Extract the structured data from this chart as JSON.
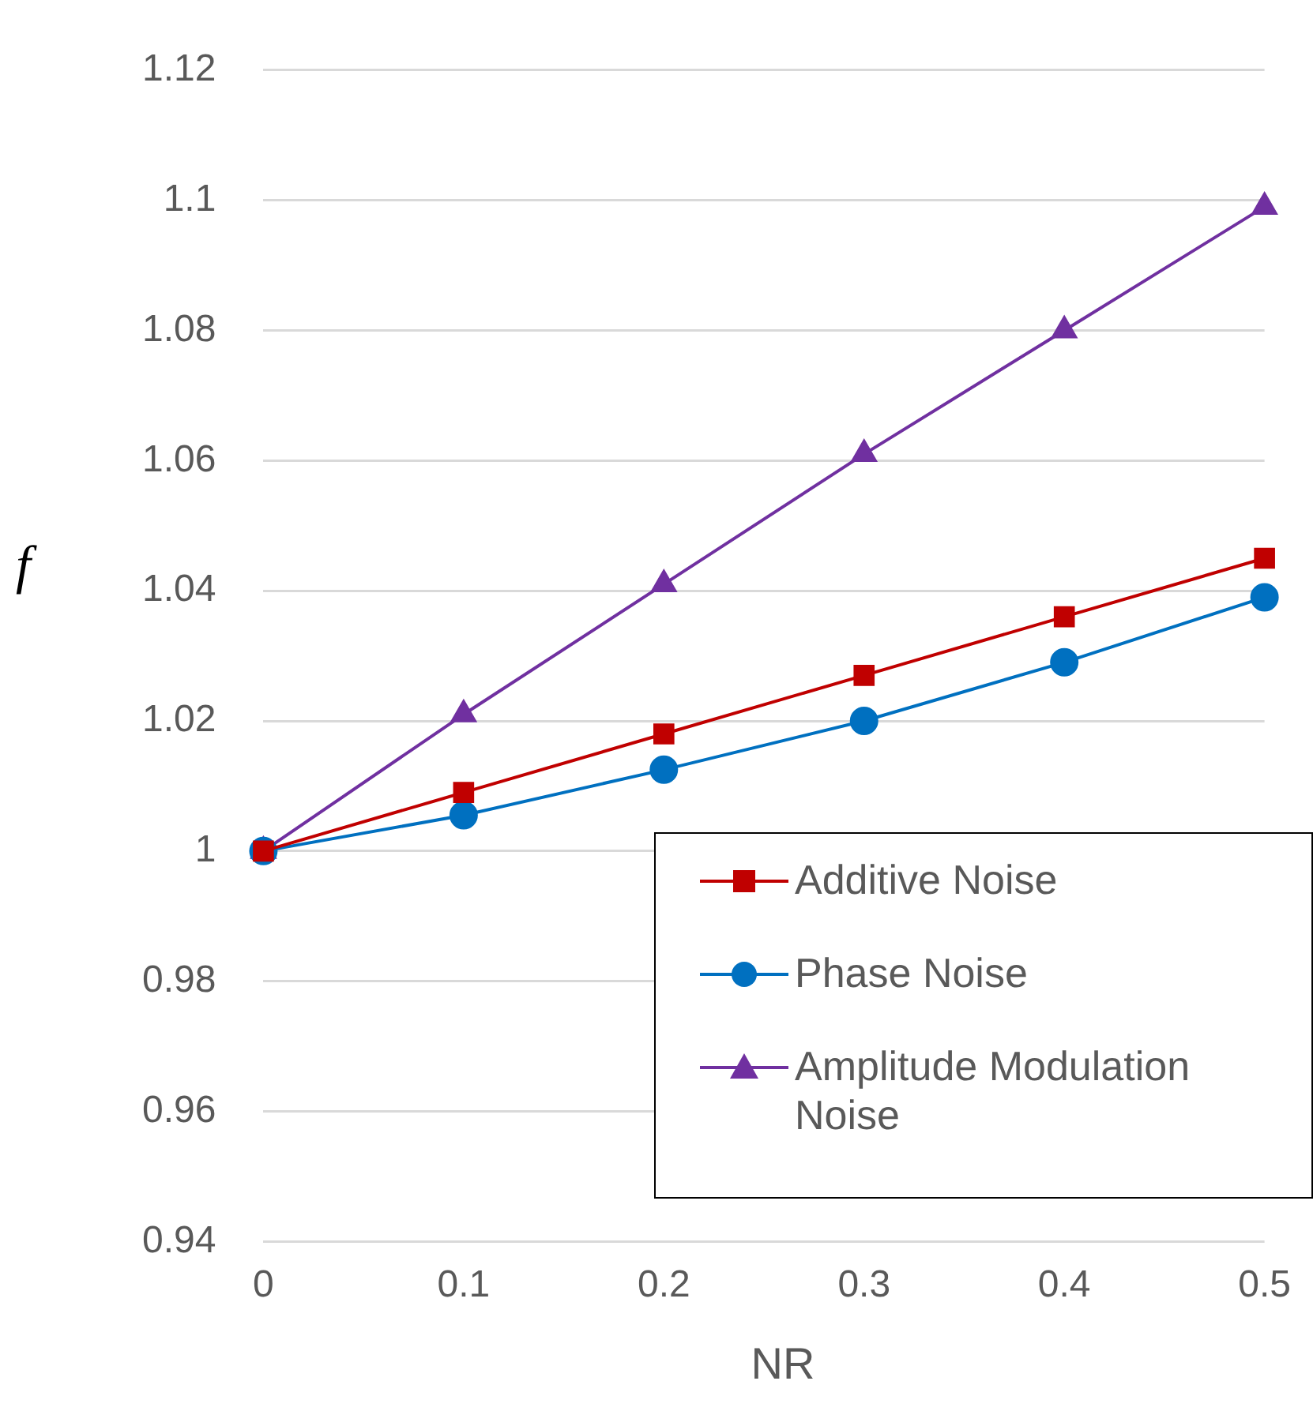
{
  "chart_data": {
    "type": "line",
    "xlabel": "NR",
    "ylabel": "f",
    "categories": [
      "0",
      "0.1",
      "0.2",
      "0.3",
      "0.4",
      "0.5"
    ],
    "series": [
      {
        "name": "Additive Noise",
        "color": "#c00000",
        "marker": "square",
        "values": [
          1.0,
          1.009,
          1.018,
          1.027,
          1.036,
          1.045
        ]
      },
      {
        "name": "Phase Noise",
        "color": "#0070c0",
        "marker": "circle",
        "values": [
          1.0,
          1.0055,
          1.0125,
          1.02,
          1.029,
          1.039
        ]
      },
      {
        "name": "Amplitude Modulation Noise",
        "color": "#7030a0",
        "marker": "triangle",
        "values": [
          1.0,
          1.021,
          1.041,
          1.061,
          1.08,
          1.099
        ]
      }
    ],
    "ylim": [
      0.94,
      1.12
    ],
    "yticks": [
      0.94,
      0.96,
      0.98,
      1,
      1.02,
      1.04,
      1.06,
      1.08,
      1.1,
      1.12
    ],
    "grid": "y",
    "legend": "bottom right",
    "line_style": "solid"
  }
}
